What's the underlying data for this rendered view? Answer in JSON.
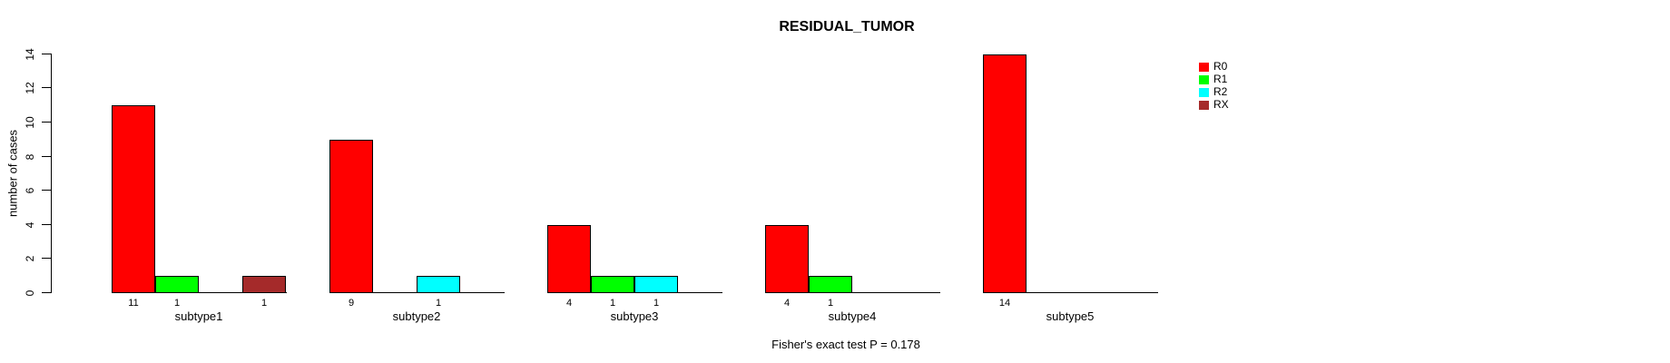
{
  "title": "RESIDUAL_TUMOR",
  "footer": "Fisher's exact test P = 0.178",
  "y_axis": {
    "label": "number of cases",
    "ticks": [
      0,
      2,
      4,
      6,
      8,
      10,
      12,
      14
    ]
  },
  "legend": {
    "entries": [
      {
        "label": "R0",
        "color": "#FF0000"
      },
      {
        "label": "R1",
        "color": "#00FF00"
      },
      {
        "label": "R2",
        "color": "#00FFFF"
      },
      {
        "label": "RX",
        "color": "#A52A2A"
      }
    ]
  },
  "chart_data": {
    "type": "bar",
    "title": "RESIDUAL_TUMOR",
    "xlabel": "",
    "ylabel": "number of cases",
    "ylim": [
      0,
      14
    ],
    "grid": false,
    "legend_position": "right",
    "categories": [
      "subtype1",
      "subtype2",
      "subtype3",
      "subtype4",
      "subtype5"
    ],
    "series": [
      {
        "name": "R0",
        "color": "#FF0000",
        "values": [
          11,
          9,
          4,
          4,
          14
        ]
      },
      {
        "name": "R1",
        "color": "#00FF00",
        "values": [
          1,
          0,
          1,
          1,
          0
        ]
      },
      {
        "name": "R2",
        "color": "#00FFFF",
        "values": [
          0,
          1,
          1,
          0,
          0
        ]
      },
      {
        "name": "RX",
        "color": "#A52A2A",
        "values": [
          1,
          0,
          0,
          0,
          0
        ]
      }
    ],
    "bar_count_labels": "each bar with count > 0 shows its count beneath it",
    "annotation": "Fisher's exact test P = 0.178"
  }
}
